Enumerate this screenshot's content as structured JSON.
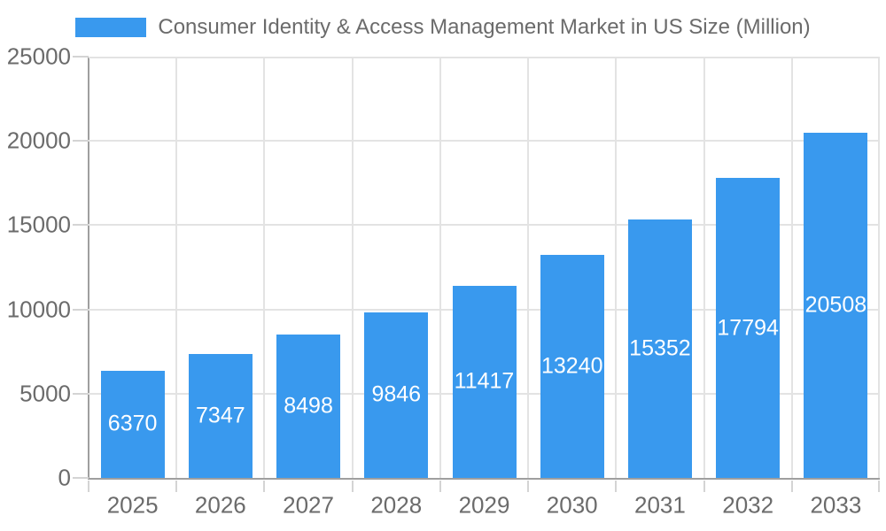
{
  "chart_data": {
    "type": "bar",
    "title": "Consumer Identity & Access Management Market in US Size (Million)",
    "legend_label": "Consumer Identity & Access Management Market in US Size (Million)",
    "legend_position": "top",
    "categories": [
      "2025",
      "2026",
      "2027",
      "2028",
      "2029",
      "2030",
      "2031",
      "2032",
      "2033"
    ],
    "values": [
      6370,
      7347,
      8498,
      9846,
      11417,
      13240,
      15352,
      17794,
      20508
    ],
    "xlabel": "",
    "ylabel": "",
    "ylim": [
      0,
      25000
    ],
    "yticks": [
      0,
      5000,
      10000,
      15000,
      20000,
      25000
    ],
    "grid": true,
    "value_labels": "inside-center",
    "colors": {
      "bar": "#3999EE",
      "value_label": "#ffffff",
      "axis_text": "#6b6b6b",
      "legend_text": "#6b6b6b",
      "gridline": "#e3e3e3",
      "tick_mark": "#d4d4d4",
      "axis_line": "#9f9f9f",
      "background": "#ffffff"
    }
  }
}
